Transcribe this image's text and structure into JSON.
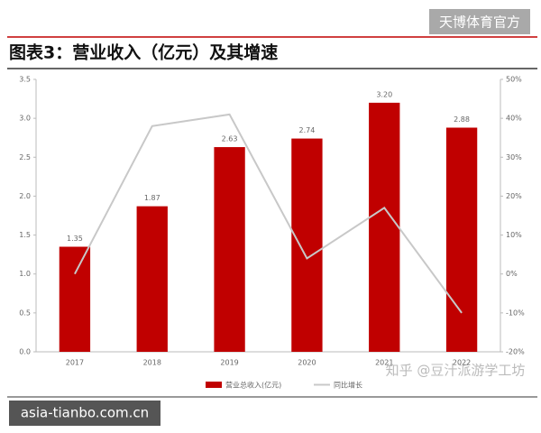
{
  "watermarks": [
    "天博体育官方",
    "知乎 @豆汁派游学工坊",
    "asia-tianbo.com.cn"
  ],
  "chart_data": {
    "type": "bar-line",
    "title": "图表3：营业收入（亿元）及其增速",
    "categories": [
      "2017",
      "2018",
      "2019",
      "2020",
      "2021",
      "2022"
    ],
    "series": [
      {
        "name": "营业总收入(亿元)",
        "type": "bar",
        "color": "#c00000",
        "values": [
          1.35,
          1.87,
          2.63,
          2.74,
          3.2,
          2.88
        ],
        "value_labels": [
          "1.35",
          "1.87",
          "2.63",
          "2.74",
          "3.20",
          "2.88"
        ]
      },
      {
        "name": "同比增长",
        "type": "line",
        "axis": "y2",
        "color": "#c8c8c8",
        "values": [
          0,
          38,
          41,
          4,
          17,
          -10
        ]
      }
    ],
    "ylim": [
      0,
      3.5
    ],
    "yticks": [
      {
        "value": 0,
        "label": "0.0"
      },
      0.5,
      {
        "value": 1,
        "label": "1.0"
      },
      1.5,
      {
        "value": 2,
        "label": "2.0"
      },
      2.5,
      {
        "value": 3,
        "label": "3.0"
      },
      3.5
    ],
    "y2lim": [
      -20,
      50
    ],
    "y2ticks": [
      {
        "value": -20,
        "label": "-20%"
      },
      {
        "value": -10,
        "label": "-10%"
      },
      {
        "value": 0,
        "label": "0%"
      },
      {
        "value": 10,
        "label": "10%"
      },
      {
        "value": 20,
        "label": "20%"
      },
      {
        "value": 30,
        "label": "30%"
      },
      {
        "value": 40,
        "label": "40%"
      },
      {
        "value": 50,
        "label": "50%"
      }
    ],
    "legend": "bottom"
  }
}
